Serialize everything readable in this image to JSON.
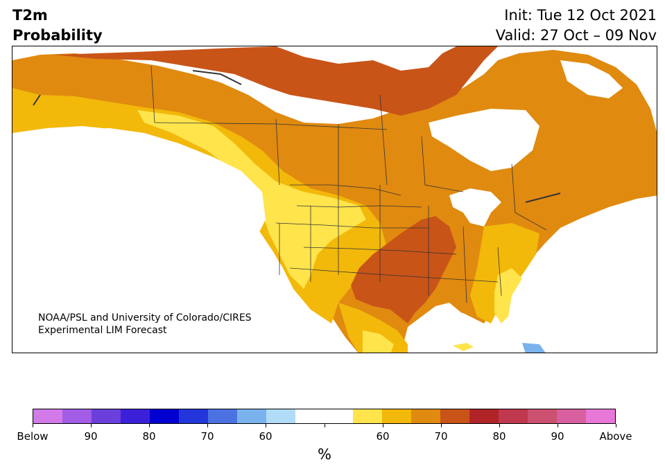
{
  "header": {
    "variable": "T2m",
    "metric": "Probability",
    "init": "Init: Tue 12 Oct 2021",
    "valid": "Valid: 27 Oct – 09 Nov"
  },
  "map": {
    "credit_line1": "NOAA/PSL and University of Colorado/CIRES",
    "credit_line2": "Experimental LIM Forecast",
    "region": "North America",
    "dominant_signal": "Above normal probability over most of continent; highest (70-80% above) over southern and central Plains"
  },
  "colorbar": {
    "unit": "%",
    "labels": [
      "Below",
      "90",
      "80",
      "70",
      "60",
      "",
      "60",
      "70",
      "80",
      "90",
      "Above"
    ],
    "colors": [
      "#d17ae8",
      "#a25ce6",
      "#6a3fdc",
      "#3a20d8",
      "#0000d0",
      "#2236dc",
      "#4c72e2",
      "#7ab2ee",
      "#b0dcf8",
      "#ffffff",
      "#ffffff",
      "#ffe44c",
      "#f2b80a",
      "#e08a10",
      "#c85418",
      "#b02428",
      "#c0384e",
      "#cc5070",
      "#d860a0",
      "#e878d8"
    ]
  }
}
